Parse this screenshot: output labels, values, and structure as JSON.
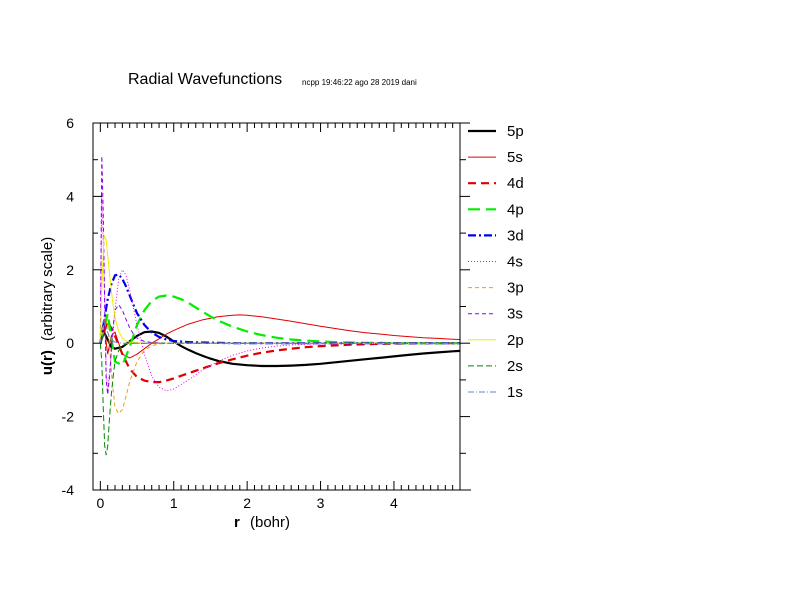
{
  "chart_data": {
    "type": "line",
    "title": "Radial Wavefunctions",
    "subtitle": "ncpp 19:46:22 ago 28 2019 dani",
    "xlabel_bold": "r",
    "xlabel_unit": "(bohr)",
    "ylabel_bold": "u(r)",
    "ylabel_rest": "(arbitrary scale)",
    "xlim": [
      -0.1,
      4.9
    ],
    "ylim": [
      -4,
      6
    ],
    "xticks": [
      0,
      1,
      2,
      3,
      4
    ],
    "xtick_labels": [
      "0",
      "1",
      "2",
      "3",
      "4"
    ],
    "yticks": [
      -4,
      -2,
      0,
      2,
      4,
      6
    ],
    "ytick_labels": [
      "-4",
      "-2",
      "0",
      "2",
      "4",
      "6"
    ],
    "grid": false,
    "legend_position": "right",
    "series": [
      {
        "name": "5p",
        "color": "#000000",
        "dash": "solid",
        "width": 2.2,
        "x": [
          0,
          0.05,
          0.1,
          0.15,
          0.2,
          0.3,
          0.4,
          0.5,
          0.6,
          0.7,
          0.8,
          0.9,
          1.0,
          1.1,
          1.2,
          1.3,
          1.4,
          1.5,
          1.6,
          1.8,
          2.0,
          2.2,
          2.4,
          2.6,
          2.8,
          3.0,
          3.2,
          3.4,
          3.6,
          3.8,
          4.0,
          4.2,
          4.4,
          4.6,
          4.8,
          4.9
        ],
        "y": [
          0,
          0.3,
          0.1,
          -0.1,
          -0.15,
          -0.1,
          0.05,
          0.2,
          0.3,
          0.32,
          0.28,
          0.18,
          0.05,
          -0.08,
          -0.18,
          -0.27,
          -0.35,
          -0.42,
          -0.48,
          -0.56,
          -0.6,
          -0.62,
          -0.62,
          -0.61,
          -0.59,
          -0.56,
          -0.52,
          -0.48,
          -0.44,
          -0.4,
          -0.36,
          -0.32,
          -0.28,
          -0.25,
          -0.22,
          -0.21
        ]
      },
      {
        "name": "5s",
        "color": "#e00000",
        "dash": "solid",
        "width": 1,
        "x": [
          0,
          0.05,
          0.1,
          0.15,
          0.2,
          0.3,
          0.4,
          0.5,
          0.6,
          0.7,
          0.8,
          0.9,
          1.0,
          1.2,
          1.4,
          1.6,
          1.8,
          1.9,
          2.0,
          2.2,
          2.4,
          2.6,
          2.8,
          3.0,
          3.2,
          3.4,
          3.6,
          3.8,
          4.0,
          4.2,
          4.4,
          4.6,
          4.8,
          4.9
        ],
        "y": [
          0,
          0.5,
          -0.3,
          0.2,
          0.3,
          -0.3,
          -0.4,
          -0.3,
          -0.15,
          0,
          0.12,
          0.25,
          0.35,
          0.52,
          0.64,
          0.72,
          0.76,
          0.77,
          0.76,
          0.72,
          0.66,
          0.6,
          0.53,
          0.46,
          0.4,
          0.34,
          0.29,
          0.25,
          0.21,
          0.18,
          0.15,
          0.13,
          0.11,
          0.1
        ]
      },
      {
        "name": "4d",
        "color": "#e00000",
        "dash": "8,5",
        "width": 2.2,
        "x": [
          0,
          0.1,
          0.2,
          0.3,
          0.4,
          0.5,
          0.6,
          0.7,
          0.8,
          0.9,
          1.0,
          1.2,
          1.4,
          1.6,
          1.8,
          2.0,
          2.2,
          2.4,
          2.6,
          2.8,
          3.0,
          3.2,
          3.4,
          3.6,
          3.8,
          4.0,
          4.4,
          4.9
        ],
        "y": [
          0,
          0.6,
          0.2,
          -0.3,
          -0.7,
          -0.92,
          -1.02,
          -1.06,
          -1.06,
          -1.02,
          -0.96,
          -0.82,
          -0.68,
          -0.55,
          -0.44,
          -0.34,
          -0.26,
          -0.2,
          -0.15,
          -0.11,
          -0.08,
          -0.06,
          -0.04,
          -0.03,
          -0.02,
          -0.01,
          0,
          0
        ]
      },
      {
        "name": "4p",
        "color": "#00ee00",
        "dash": "12,6",
        "width": 2.2,
        "x": [
          0,
          0.1,
          0.2,
          0.3,
          0.4,
          0.5,
          0.6,
          0.7,
          0.8,
          0.9,
          1.0,
          1.1,
          1.2,
          1.3,
          1.4,
          1.5,
          1.6,
          1.8,
          2.0,
          2.2,
          2.4,
          2.6,
          2.8,
          3.0,
          3.2,
          3.4,
          3.6,
          3.8,
          4.0,
          4.4,
          4.9
        ],
        "y": [
          0,
          0.8,
          -0.5,
          -0.6,
          -0.1,
          0.5,
          0.9,
          1.15,
          1.27,
          1.3,
          1.27,
          1.2,
          1.1,
          0.97,
          0.85,
          0.73,
          0.62,
          0.45,
          0.32,
          0.22,
          0.15,
          0.1,
          0.07,
          0.05,
          0.03,
          0.02,
          0.01,
          0.01,
          0,
          0,
          0
        ]
      },
      {
        "name": "3d",
        "color": "#0000ee",
        "dash": "8,3,2,3",
        "width": 2.2,
        "x": [
          0,
          0.05,
          0.1,
          0.15,
          0.2,
          0.25,
          0.3,
          0.35,
          0.4,
          0.45,
          0.5,
          0.6,
          0.7,
          0.8,
          0.9,
          1.0,
          1.2,
          1.4,
          1.6,
          1.8,
          2.0,
          2.4,
          3.0,
          3.5,
          4.0,
          4.9
        ],
        "y": [
          0,
          0.6,
          1.2,
          1.6,
          1.85,
          1.87,
          1.75,
          1.55,
          1.3,
          1.05,
          0.82,
          0.5,
          0.29,
          0.17,
          0.1,
          0.06,
          0.03,
          0.02,
          0.01,
          0,
          0,
          0,
          0,
          0,
          0,
          0
        ]
      },
      {
        "name": "4s",
        "color": "#ee00ee",
        "dash": "1,2",
        "width": 1,
        "x": [
          0,
          0.02,
          0.05,
          0.08,
          0.1,
          0.15,
          0.2,
          0.25,
          0.3,
          0.35,
          0.4,
          0.45,
          0.5,
          0.6,
          0.7,
          0.8,
          0.9,
          1.0,
          1.2,
          1.4,
          1.6,
          1.8,
          2.0,
          2.2,
          2.4,
          2.6,
          2.8,
          3.0,
          3.3,
          3.6,
          4.0,
          4.4,
          4.9
        ],
        "y": [
          0,
          4.0,
          2.0,
          -0.8,
          -1.3,
          -0.3,
          0.9,
          1.75,
          2.0,
          1.85,
          1.45,
          0.95,
          0.5,
          -0.3,
          -0.9,
          -1.2,
          -1.3,
          -1.25,
          -1.0,
          -0.72,
          -0.5,
          -0.33,
          -0.21,
          -0.13,
          -0.08,
          -0.05,
          -0.03,
          -0.02,
          -0.01,
          0,
          0,
          0,
          0
        ]
      },
      {
        "name": "3p",
        "color": "#f0a000",
        "dash": "4,3",
        "width": 1,
        "x": [
          0,
          0.03,
          0.06,
          0.1,
          0.13,
          0.16,
          0.2,
          0.25,
          0.3,
          0.35,
          0.4,
          0.5,
          0.6,
          0.7,
          0.8,
          0.9,
          1.0,
          1.2,
          1.4,
          1.6,
          1.8,
          2.0,
          2.4,
          3.0,
          4.0,
          4.9
        ],
        "y": [
          0,
          0.3,
          0.7,
          0.5,
          -0.2,
          -1.0,
          -1.75,
          -1.92,
          -1.8,
          -1.45,
          -1.05,
          -0.5,
          -0.2,
          -0.07,
          -0.02,
          0,
          0,
          0,
          0,
          0,
          0,
          0,
          0,
          0,
          0,
          0
        ]
      },
      {
        "name": "3s",
        "color": "#8800ee",
        "dash": "4,3",
        "width": 1,
        "x": [
          0,
          0.02,
          0.04,
          0.06,
          0.08,
          0.1,
          0.13,
          0.16,
          0.2,
          0.25,
          0.3,
          0.35,
          0.4,
          0.45,
          0.5,
          0.6,
          0.7,
          0.8,
          0.9,
          1.0,
          1.2,
          1.5,
          2.0,
          2.5,
          3.0,
          4.0,
          4.9
        ],
        "y": [
          0,
          5.1,
          3.5,
          1.0,
          -1.0,
          -1.4,
          -0.8,
          0.2,
          0.9,
          1.05,
          0.9,
          0.65,
          0.42,
          0.25,
          0.14,
          0.05,
          0.02,
          0.01,
          0,
          0,
          0,
          0,
          0,
          0,
          0,
          0,
          0
        ]
      },
      {
        "name": "2p",
        "color": "#eeee00",
        "dash": "solid",
        "width": 1,
        "x": [
          0,
          0.02,
          0.05,
          0.08,
          0.1,
          0.13,
          0.16,
          0.2,
          0.25,
          0.3,
          0.35,
          0.4,
          0.5,
          0.6,
          0.7,
          0.8,
          1.0,
          1.2,
          1.5,
          2.0,
          3.0,
          4.0,
          4.9
        ],
        "y": [
          0,
          1.5,
          2.95,
          2.8,
          2.4,
          1.8,
          1.25,
          0.7,
          0.32,
          0.14,
          0.06,
          0.03,
          0.01,
          0,
          0,
          0,
          0,
          0,
          0,
          0,
          0,
          0,
          0
        ]
      },
      {
        "name": "2s",
        "color": "#008800",
        "dash": "6,3",
        "width": 1,
        "x": [
          0,
          0.02,
          0.04,
          0.06,
          0.08,
          0.1,
          0.12,
          0.15,
          0.18,
          0.2,
          0.25,
          0.3,
          0.35,
          0.4,
          0.5,
          0.6,
          0.8,
          1.0,
          1.5,
          2.0,
          3.0,
          4.0,
          4.9
        ],
        "y": [
          0,
          -0.5,
          -1.8,
          -2.8,
          -3.05,
          -2.8,
          -2.2,
          -1.4,
          -0.8,
          -0.5,
          -0.2,
          -0.07,
          -0.02,
          0,
          0,
          0,
          0,
          0,
          0,
          0,
          0,
          0,
          0
        ]
      },
      {
        "name": "1s",
        "color": "#6688cc",
        "dash": "6,2,1,2",
        "width": 1,
        "x": [
          0,
          0.02,
          0.04,
          0.06,
          0.08,
          0.1,
          0.12,
          0.15,
          0.2,
          0.25,
          0.3,
          0.4,
          0.5,
          1.0,
          2.0,
          3.0,
          4.0,
          4.9
        ],
        "y": [
          0,
          0.4,
          0.6,
          0.55,
          0.42,
          0.3,
          0.2,
          0.1,
          0.03,
          0.01,
          0,
          0,
          0,
          0,
          0,
          0,
          0,
          0
        ]
      }
    ]
  }
}
